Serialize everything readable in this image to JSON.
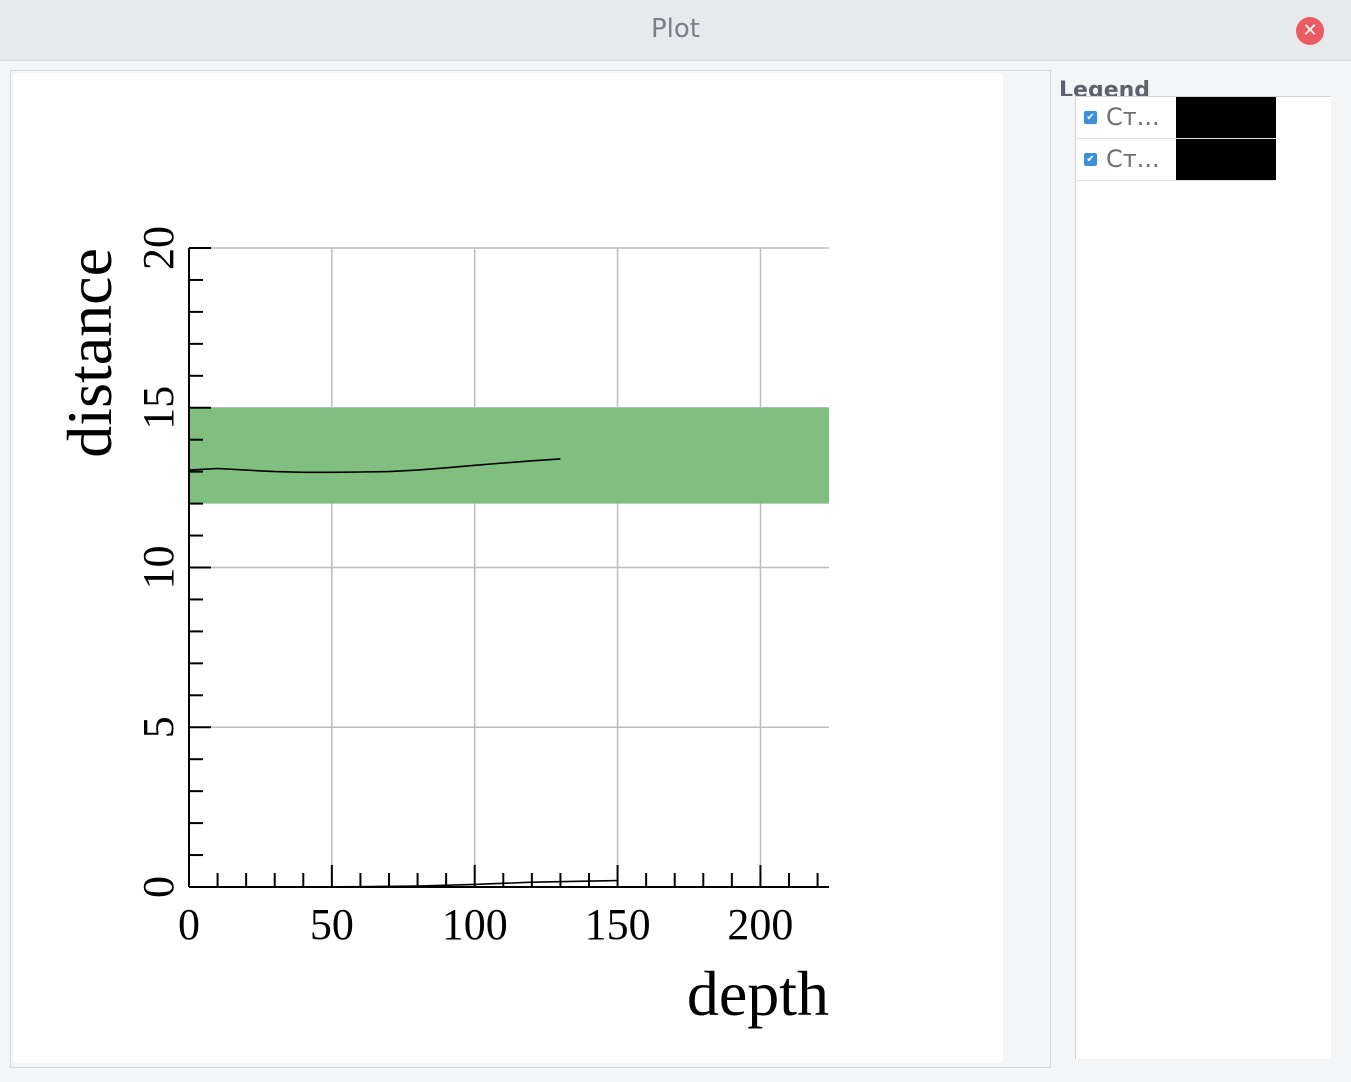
{
  "window": {
    "title": "Plot",
    "close_icon": "close-icon",
    "close_symbol": "✕"
  },
  "legend": {
    "title": "Legend",
    "items": [
      {
        "label": "Ст...",
        "checked": true,
        "color": "#000000"
      },
      {
        "label": "Ст...",
        "checked": true,
        "color": "#000000"
      }
    ]
  },
  "chart_data": {
    "type": "line",
    "xlabel": "depth",
    "ylabel": "distance",
    "xlim": [
      0,
      224
    ],
    "ylim": [
      0,
      20
    ],
    "x_ticks": [
      0,
      50,
      100,
      150,
      200
    ],
    "y_ticks": [
      0,
      5,
      10,
      15,
      20
    ],
    "grid": true,
    "band": {
      "y_from": 12,
      "y_to": 15,
      "color": "#80bf80"
    },
    "series": [
      {
        "color": "#000000",
        "x": [
          0,
          10,
          20,
          30,
          40,
          50,
          60,
          70,
          80,
          90,
          100,
          110,
          120,
          130
        ],
        "y": [
          13.05,
          13.1,
          13.05,
          13.0,
          12.98,
          12.98,
          12.99,
          13.0,
          13.05,
          13.12,
          13.2,
          13.27,
          13.34,
          13.4
        ]
      },
      {
        "color": "#000000",
        "x": [
          0,
          20,
          40,
          60,
          80,
          100,
          120,
          150
        ],
        "y": [
          0.0,
          0.0,
          0.0,
          0.01,
          0.03,
          0.08,
          0.15,
          0.2
        ]
      }
    ]
  }
}
